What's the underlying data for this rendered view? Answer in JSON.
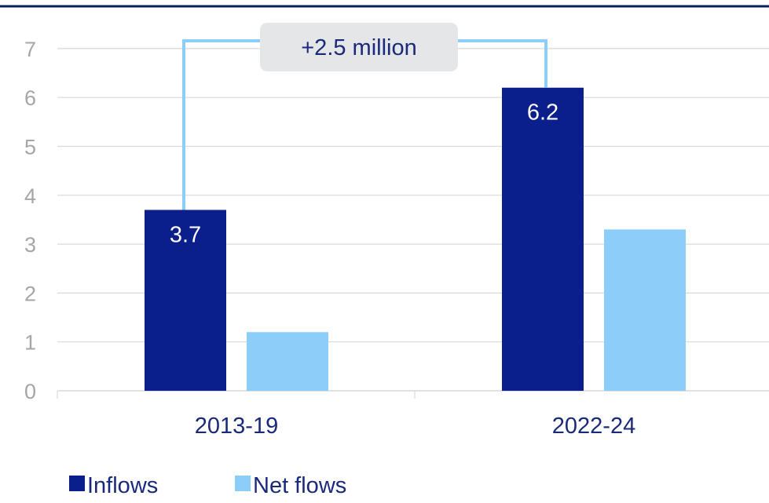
{
  "chart_data": {
    "type": "bar",
    "categories": [
      "2013-19",
      "2022-24"
    ],
    "series": [
      {
        "name": "Inflows",
        "values": [
          3.7,
          6.2
        ]
      },
      {
        "name": "Net flows",
        "values": [
          1.2,
          3.3
        ]
      }
    ],
    "data_labels": {
      "Inflows": [
        "3.7",
        "6.2"
      ]
    },
    "annotation": "+2.5 million",
    "ylim": [
      0,
      7
    ],
    "yticks": [
      "0",
      "1",
      "2",
      "3",
      "4",
      "5",
      "6",
      "7"
    ],
    "grid": true,
    "legend_position": "bottom-left",
    "colors": {
      "Inflows": "#0b1f8c",
      "Net flows": "#8ccdfa",
      "grid": "#d9d9d9",
      "tick_label": "#a6a6a6",
      "category_label": "#1a2a7a",
      "top_rule": "#0b1f5c",
      "annotation_bg": "#e4e6e8",
      "annotation_text": "#1a2a7a",
      "bracket": "#8ccdfa"
    }
  }
}
